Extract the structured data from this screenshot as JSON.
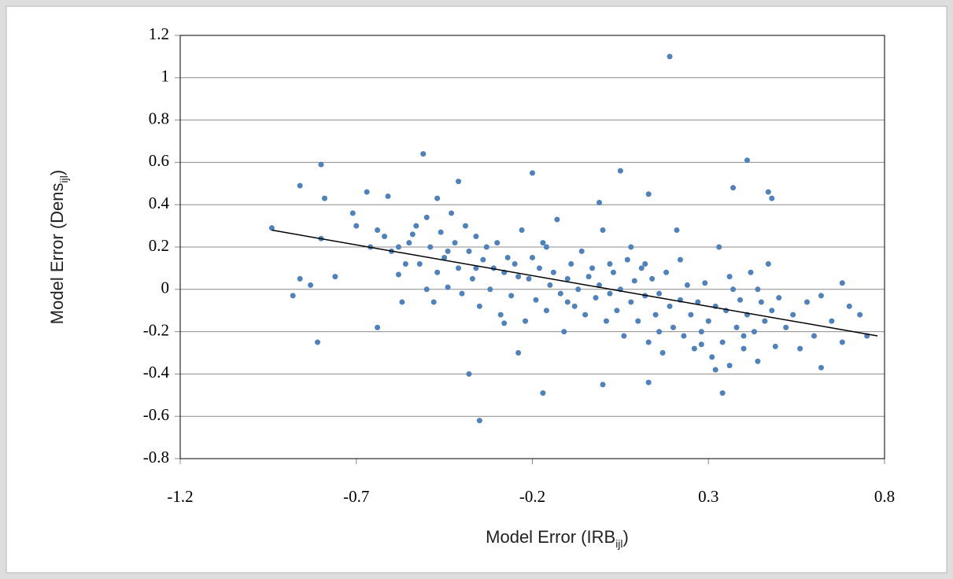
{
  "chart_data": {
    "type": "scatter",
    "xlabel": "Model Error (IRB",
    "xlabel_sub": "ijl",
    "xlabel_end": ")",
    "ylabel": "Model Error (Dens",
    "ylabel_sub": "ijl",
    "ylabel_end": ")",
    "xlim": [
      -1.2,
      0.8
    ],
    "xticks": [
      -1.2,
      -0.7,
      -0.2,
      0.3,
      0.8
    ],
    "ylim": [
      -0.8,
      1.2
    ],
    "yticks": [
      -0.8,
      -0.6,
      -0.4,
      -0.2,
      0,
      0.2,
      0.4,
      0.6,
      0.8,
      1,
      1.2
    ],
    "grid": true,
    "color": "#4f81bd",
    "x": [
      0.19,
      0.41,
      -0.51,
      -0.35,
      -0.8,
      -0.86,
      -0.79,
      -0.94,
      -0.88,
      -0.81,
      -0.64,
      0.62,
      0.05,
      -0.2,
      -0.17,
      0.34,
      0.0,
      -0.38,
      0.13,
      0.48,
      0.47,
      0.37,
      0.68,
      0.75,
      0.73,
      -0.01,
      0.13,
      -0.67,
      -0.71,
      -0.61,
      -0.47,
      -0.41,
      -0.62,
      -0.6,
      -0.58,
      -0.57,
      -0.55,
      -0.53,
      -0.52,
      -0.5,
      -0.49,
      -0.48,
      -0.47,
      -0.46,
      -0.45,
      -0.44,
      -0.43,
      -0.42,
      -0.41,
      -0.4,
      -0.39,
      -0.38,
      -0.37,
      -0.36,
      -0.35,
      -0.34,
      -0.33,
      -0.32,
      -0.31,
      -0.3,
      -0.29,
      -0.28,
      -0.27,
      -0.26,
      -0.25,
      -0.24,
      -0.23,
      -0.22,
      -0.21,
      -0.2,
      -0.19,
      -0.18,
      -0.17,
      -0.16,
      -0.15,
      -0.14,
      -0.13,
      -0.12,
      -0.11,
      -0.1,
      -0.09,
      -0.08,
      -0.07,
      -0.06,
      -0.05,
      -0.04,
      -0.03,
      -0.02,
      -0.01,
      0.0,
      0.01,
      0.02,
      0.03,
      0.04,
      0.05,
      0.06,
      0.07,
      0.08,
      0.09,
      0.1,
      0.11,
      0.12,
      0.13,
      0.14,
      0.15,
      0.16,
      0.17,
      0.18,
      0.19,
      0.2,
      0.21,
      0.22,
      0.23,
      0.24,
      0.25,
      0.26,
      0.27,
      0.28,
      0.29,
      0.3,
      0.31,
      0.32,
      0.33,
      0.34,
      0.35,
      0.36,
      0.37,
      0.38,
      0.39,
      0.4,
      0.41,
      0.42,
      0.43,
      0.44,
      0.45,
      0.46,
      0.47,
      0.48,
      0.49,
      0.5,
      0.52,
      0.54,
      0.56,
      0.58,
      0.6,
      0.62,
      0.65,
      0.68,
      0.7,
      -0.7,
      -0.66,
      -0.64,
      -0.58,
      -0.56,
      -0.54,
      -0.5,
      -0.44,
      -0.36,
      -0.28,
      -0.24,
      -0.16,
      -0.1,
      0.02,
      0.08,
      0.12,
      0.16,
      0.22,
      0.28,
      0.32,
      0.36,
      0.4,
      0.44,
      -0.86,
      -0.83,
      -0.76,
      -0.8
    ],
    "y": [
      1.1,
      0.61,
      0.64,
      -0.62,
      0.59,
      0.49,
      0.43,
      0.29,
      -0.03,
      -0.25,
      -0.18,
      -0.37,
      0.56,
      0.55,
      -0.49,
      -0.49,
      -0.45,
      -0.4,
      -0.44,
      0.43,
      0.46,
      0.48,
      0.03,
      -0.22,
      -0.12,
      0.41,
      0.45,
      0.46,
      0.36,
      0.44,
      0.43,
      0.51,
      0.25,
      0.18,
      0.07,
      -0.06,
      0.22,
      0.3,
      0.12,
      0.34,
      0.2,
      -0.06,
      0.08,
      0.27,
      0.15,
      0.01,
      0.36,
      0.22,
      0.1,
      -0.02,
      0.3,
      0.18,
      0.05,
      0.25,
      -0.08,
      0.14,
      0.2,
      0.0,
      0.1,
      0.22,
      -0.12,
      0.08,
      0.15,
      -0.03,
      0.12,
      0.06,
      0.28,
      -0.15,
      0.05,
      0.15,
      -0.05,
      0.1,
      0.22,
      -0.1,
      0.02,
      0.08,
      0.33,
      -0.02,
      -0.2,
      0.05,
      0.12,
      -0.08,
      0.0,
      0.18,
      -0.12,
      0.06,
      0.1,
      -0.04,
      0.02,
      0.28,
      -0.15,
      -0.02,
      0.08,
      -0.1,
      0.0,
      -0.22,
      0.14,
      -0.06,
      0.04,
      -0.15,
      0.1,
      -0.03,
      -0.25,
      0.05,
      -0.12,
      -0.02,
      -0.3,
      0.08,
      -0.08,
      -0.18,
      0.28,
      -0.05,
      -0.22,
      0.02,
      -0.12,
      -0.28,
      -0.06,
      -0.2,
      0.03,
      -0.15,
      -0.32,
      -0.08,
      0.2,
      -0.25,
      -0.1,
      -0.36,
      0.0,
      -0.18,
      -0.05,
      -0.28,
      -0.12,
      0.08,
      -0.2,
      -0.34,
      -0.06,
      -0.15,
      0.12,
      -0.1,
      -0.27,
      -0.04,
      -0.18,
      -0.12,
      -0.28,
      -0.06,
      -0.22,
      -0.03,
      -0.15,
      -0.25,
      -0.08,
      0.3,
      0.2,
      0.28,
      0.2,
      0.12,
      0.26,
      0.0,
      0.18,
      0.1,
      -0.16,
      -0.3,
      0.2,
      -0.06,
      0.12,
      0.2,
      0.12,
      -0.2,
      0.14,
      -0.26,
      -0.38,
      0.06,
      -0.22,
      0.0,
      0.05,
      0.02,
      0.06,
      0.24
    ],
    "trendline": {
      "x": [
        -0.94,
        0.78
      ],
      "y": [
        0.28,
        -0.22
      ],
      "color": "#000000"
    }
  }
}
